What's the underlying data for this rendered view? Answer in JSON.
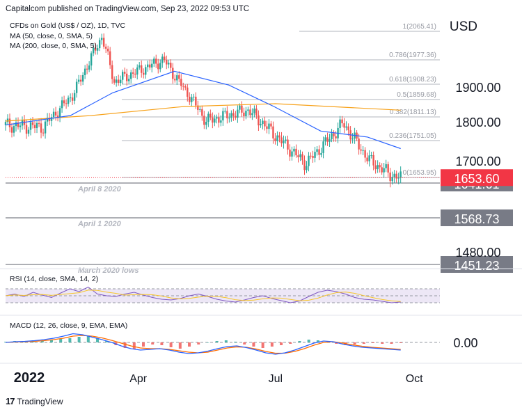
{
  "header": {
    "publisher": "Capitalcom published on TradingView.com, Sep 23, 2022 09:53 UTC",
    "currency": "USD"
  },
  "legend": {
    "symbol": "CFDs on Gold (US$ / OZ), 1D, TVC",
    "ma50": "MA (50, close, 0, SMA, 5)",
    "ma200": "MA (200, close, 0, SMA, 5)",
    "rsi": "RSI (14, close, SMA, 14, 2)",
    "macd": "MACD (12, 26, close, 9, EMA, EMA)"
  },
  "footer": {
    "brand": "TradingView"
  },
  "colors": {
    "up": "#26a69a",
    "down": "#ef5350",
    "ma50": "#2962ff",
    "ma200": "#f7a21b",
    "rsi": "#7e57c2",
    "rsi_band": "#ede7f6",
    "fib": "#b2b5be",
    "price_tag": "#f23645",
    "level_tag": "#787b86"
  },
  "chart_data": [
    {
      "type": "candlestick",
      "title": "CFDs on Gold (US$ / OZ), 1D, TVC",
      "x_ticks": [
        "2022",
        "Apr",
        "Jul",
        "Oct"
      ],
      "y_ticks": [
        1480.0,
        1700.0,
        1800.0,
        1900.0
      ],
      "ylim": [
        1440,
        2080
      ],
      "last_price": 1653.6,
      "key_points": [
        {
          "date": "2022-01-03",
          "close": 1790
        },
        {
          "date": "2022-01-28",
          "close": 1785
        },
        {
          "date": "2022-02-16",
          "close": 1870
        },
        {
          "date": "2022-03-08",
          "close": 2050
        },
        {
          "date": "2022-03-16",
          "close": 1915
        },
        {
          "date": "2022-04-18",
          "close": 1978
        },
        {
          "date": "2022-05-16",
          "close": 1800
        },
        {
          "date": "2022-06-13",
          "close": 1830
        },
        {
          "date": "2022-07-21",
          "close": 1690
        },
        {
          "date": "2022-08-15",
          "close": 1795
        },
        {
          "date": "2022-09-01",
          "close": 1700
        },
        {
          "date": "2022-09-16",
          "close": 1660
        },
        {
          "date": "2022-09-22",
          "close": 1653.6
        }
      ],
      "ma50": [
        {
          "date": "2022-01-03",
          "value": 1790
        },
        {
          "date": "2022-02-15",
          "value": 1815
        },
        {
          "date": "2022-03-15",
          "value": 1880
        },
        {
          "date": "2022-04-25",
          "value": 1945
        },
        {
          "date": "2022-05-31",
          "value": 1905
        },
        {
          "date": "2022-06-30",
          "value": 1840
        },
        {
          "date": "2022-07-31",
          "value": 1775
        },
        {
          "date": "2022-08-31",
          "value": 1760
        },
        {
          "date": "2022-09-22",
          "value": 1730
        }
      ],
      "ma200": [
        {
          "date": "2022-01-03",
          "value": 1800
        },
        {
          "date": "2022-03-01",
          "value": 1815
        },
        {
          "date": "2022-05-01",
          "value": 1840
        },
        {
          "date": "2022-07-01",
          "value": 1848
        },
        {
          "date": "2022-09-22",
          "value": 1830
        }
      ],
      "fib_levels": [
        {
          "label": "1(2065.41)",
          "value": 2065.41
        },
        {
          "label": "0.786(1977.36)",
          "value": 1977.36
        },
        {
          "label": "0.618(1908.23)",
          "value": 1908.23
        },
        {
          "label": "0.5(1859.68)",
          "value": 1859.68
        },
        {
          "label": "0.382(1811.13)",
          "value": 1811.13
        },
        {
          "label": "0.236(1751.05)",
          "value": 1751.05
        },
        {
          "label": "0(1653.95)",
          "value": 1653.95
        }
      ],
      "support_levels": [
        {
          "label": "April 8 2020",
          "value": 1641.61
        },
        {
          "label": "April 1 2020",
          "value": 1568.73
        },
        {
          "label": "March 2020 lows",
          "value": 1451.23
        }
      ]
    },
    {
      "type": "line",
      "title": "RSI (14, close, SMA, 14, 2)",
      "band": [
        30,
        70
      ],
      "rsi_points": [
        50,
        55,
        48,
        60,
        52,
        45,
        58,
        70,
        62,
        75,
        55,
        50,
        48,
        55,
        60,
        52,
        45,
        40,
        38,
        42,
        50,
        55,
        48,
        40,
        35,
        32,
        38,
        45,
        50,
        42,
        36,
        30,
        35,
        48,
        60,
        66,
        62,
        55,
        45,
        40,
        38,
        34,
        30,
        32
      ]
    },
    {
      "type": "bar",
      "title": "MACD (12, 26, close, 9, EMA, EMA)",
      "y_ticks": [
        0.0
      ],
      "histogram": [
        1,
        2,
        1,
        3,
        2,
        4,
        5,
        6,
        8,
        10,
        6,
        2,
        -4,
        -8,
        -10,
        -6,
        -3,
        -4,
        -7,
        -9,
        -6,
        -3,
        0,
        2,
        3,
        1,
        -3,
        -6,
        -8,
        -6,
        -4,
        -2,
        2,
        4,
        3,
        1,
        -2,
        -4,
        -3,
        -2,
        -1,
        -2,
        -2,
        -1
      ],
      "macd_points": [
        0,
        2,
        3,
        5,
        8,
        12,
        18,
        25,
        22,
        15,
        8,
        0,
        -10,
        -18,
        -22,
        -20,
        -18,
        -22,
        -28,
        -32,
        -30,
        -25,
        -18,
        -12,
        -10,
        -15,
        -22,
        -30,
        -34,
        -30,
        -22,
        -12,
        -2,
        4,
        2,
        -5,
        -10,
        -14,
        -16,
        -18,
        -20,
        -22
      ],
      "signal_points": [
        0,
        1,
        2,
        3,
        5,
        8,
        12,
        18,
        20,
        18,
        13,
        6,
        -2,
        -10,
        -16,
        -18,
        -18,
        -20,
        -24,
        -28,
        -30,
        -28,
        -22,
        -16,
        -13,
        -14,
        -19,
        -26,
        -31,
        -31,
        -26,
        -18,
        -8,
        0,
        2,
        -2,
        -7,
        -11,
        -14,
        -16,
        -18,
        -20
      ]
    }
  ]
}
